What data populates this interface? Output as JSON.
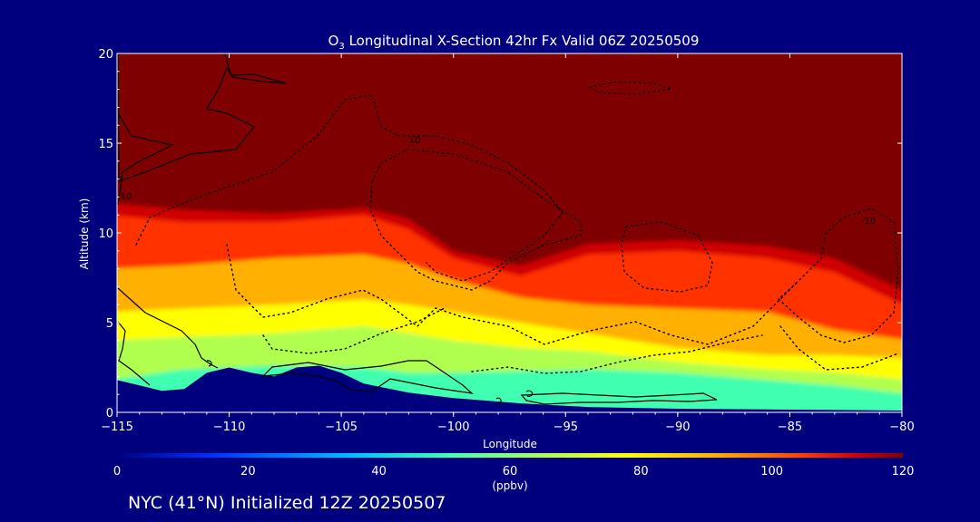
{
  "chart_data": {
    "type": "heatmap",
    "title": "O3 Longitudinal X-Section 42hr  Fx Valid 06Z 20250509",
    "title_prefix": "O",
    "title_subscript": "3",
    "title_suffix": " Longitudinal X-Section 42hr  Fx Valid 06Z 20250509",
    "xlabel": "Longitude",
    "ylabel": "Altitude (km)",
    "xlim": [
      -115,
      -80
    ],
    "ylim": [
      0,
      20
    ],
    "x_ticks": [
      -115,
      -110,
      -105,
      -100,
      -95,
      -90,
      -85,
      -80
    ],
    "x_tick_labels": [
      "−115",
      "−110",
      "−105",
      "−100",
      "−95",
      "−90",
      "−85",
      "−80"
    ],
    "y_ticks": [
      0,
      5,
      10,
      15,
      20
    ],
    "y_tick_labels": [
      "0",
      "5",
      "10",
      "15",
      "20"
    ],
    "colorbar": {
      "ticks": [
        0,
        20,
        40,
        60,
        80,
        100,
        120
      ],
      "tick_labels": [
        "0",
        "20",
        "40",
        "60",
        "80",
        "100",
        "120"
      ],
      "units": "(ppbv)",
      "range": [
        0,
        120
      ]
    },
    "grid": false,
    "ozone_levels_km": [
      {
        "lon": -115,
        "ppb40": 1.8,
        "ppb60": 4.0,
        "ppb70": 5.6,
        "ppb80": 8.0,
        "ppb100": 11.0,
        "ppb110": 11.7
      },
      {
        "lon": -112,
        "ppb40": 2.4,
        "ppb60": 4.2,
        "ppb70": 5.8,
        "ppb80": 8.2,
        "ppb100": 10.6,
        "ppb110": 11.3
      },
      {
        "lon": -108,
        "ppb40": 2.6,
        "ppb60": 4.4,
        "ppb70": 6.0,
        "ppb80": 8.6,
        "ppb100": 10.6,
        "ppb110": 11.1
      },
      {
        "lon": -104,
        "ppb40": 2.5,
        "ppb60": 4.8,
        "ppb70": 6.3,
        "ppb80": 8.8,
        "ppb100": 11.0,
        "ppb110": 11.4
      },
      {
        "lon": -102,
        "ppb40": 2.2,
        "ppb60": 4.4,
        "ppb70": 6.0,
        "ppb80": 8.3,
        "ppb100": 10.2,
        "ppb110": 10.8
      },
      {
        "lon": -100,
        "ppb40": 2.2,
        "ppb60": 4.0,
        "ppb70": 5.6,
        "ppb80": 7.4,
        "ppb100": 8.6,
        "ppb110": 9.0
      },
      {
        "lon": -97,
        "ppb40": 2.3,
        "ppb60": 3.6,
        "ppb70": 5.0,
        "ppb80": 6.4,
        "ppb100": 7.6,
        "ppb110": 8.2
      },
      {
        "lon": -94,
        "ppb40": 2.4,
        "ppb60": 3.4,
        "ppb70": 4.4,
        "ppb80": 6.0,
        "ppb100": 8.8,
        "ppb110": 9.4
      },
      {
        "lon": -90,
        "ppb40": 2.2,
        "ppb60": 2.8,
        "ppb70": 3.6,
        "ppb80": 5.8,
        "ppb100": 9.0,
        "ppb110": 9.6
      },
      {
        "lon": -86,
        "ppb40": 1.8,
        "ppb60": 2.4,
        "ppb70": 3.2,
        "ppb80": 5.6,
        "ppb100": 8.6,
        "ppb110": 9.3
      },
      {
        "lon": -83,
        "ppb40": 1.5,
        "ppb60": 2.2,
        "ppb70": 3.2,
        "ppb80": 4.6,
        "ppb100": 7.8,
        "ppb110": 8.6
      },
      {
        "lon": -80,
        "ppb40": 1.0,
        "ppb60": 1.8,
        "ppb70": 3.0,
        "ppb80": 4.0,
        "ppb100": 5.8,
        "ppb110": 6.6
      }
    ],
    "terrain_km": [
      {
        "lon": -115,
        "alt": 1.8
      },
      {
        "lon": -114,
        "alt": 1.5
      },
      {
        "lon": -113,
        "alt": 1.2
      },
      {
        "lon": -112,
        "alt": 1.3
      },
      {
        "lon": -111,
        "alt": 2.2
      },
      {
        "lon": -110,
        "alt": 2.5
      },
      {
        "lon": -109,
        "alt": 2.2
      },
      {
        "lon": -108,
        "alt": 2.0
      },
      {
        "lon": -107,
        "alt": 2.5
      },
      {
        "lon": -106,
        "alt": 2.6
      },
      {
        "lon": -105,
        "alt": 2.2
      },
      {
        "lon": -104,
        "alt": 1.6
      },
      {
        "lon": -102,
        "alt": 1.1
      },
      {
        "lon": -100,
        "alt": 0.8
      },
      {
        "lon": -97,
        "alt": 0.5
      },
      {
        "lon": -94,
        "alt": 0.3
      },
      {
        "lon": -90,
        "alt": 0.2
      },
      {
        "lon": -85,
        "alt": 0.15
      },
      {
        "lon": -80,
        "alt": 0.1
      }
    ],
    "contour_labels": [
      {
        "text": "-10",
        "lon": -101.8,
        "alt": 15.0
      },
      {
        "text": "-10",
        "lon": -81.5,
        "alt": 10.5
      },
      {
        "text": "10",
        "lon": -114.6,
        "alt": 11.9
      }
    ]
  },
  "footer": {
    "text": "NYC (41°N) Initialized 12Z 20250507"
  },
  "colors": {
    "background": "#00007f",
    "colormap": [
      "#00007f",
      "#0030ff",
      "#00c0ff",
      "#40ffb0",
      "#b0ff50",
      "#ffff00",
      "#ffb000",
      "#ff4000",
      "#d00000",
      "#7f0000"
    ]
  }
}
